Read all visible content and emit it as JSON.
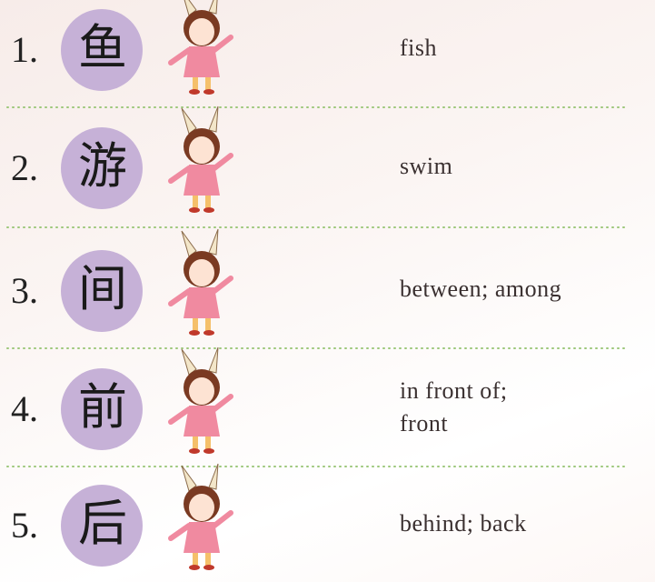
{
  "items": [
    {
      "number": "1.",
      "character": "鱼",
      "meaning": [
        "fish"
      ]
    },
    {
      "number": "2.",
      "character": "游",
      "meaning": [
        "swim"
      ]
    },
    {
      "number": "3.",
      "character": "间",
      "meaning": [
        "between; among"
      ]
    },
    {
      "number": "4.",
      "character": "前",
      "meaning": [
        "in front of;",
        "front"
      ]
    },
    {
      "number": "5.",
      "character": "后",
      "meaning": [
        "behind; back"
      ]
    }
  ]
}
